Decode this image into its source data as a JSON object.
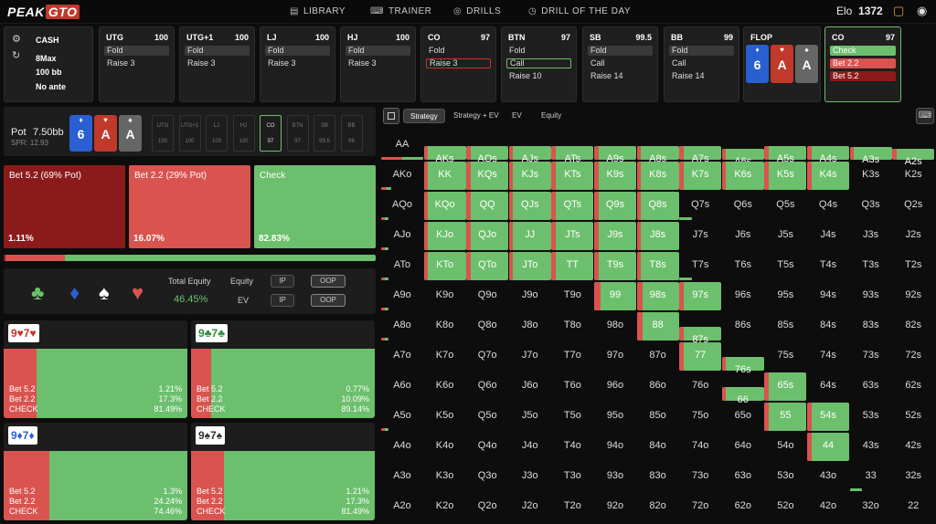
{
  "app": {
    "logo_a": "PEAK",
    "logo_b": "GTO",
    "elo_label": "Elo",
    "elo_value": "1372"
  },
  "nav": [
    {
      "label": "LIBRARY",
      "icon": "book-icon"
    },
    {
      "label": "TRAINER",
      "icon": "gamepad-icon"
    },
    {
      "label": "DRILLS",
      "icon": "target-icon"
    },
    {
      "label": "DRILL OF THE DAY",
      "icon": "clock-icon"
    }
  ],
  "settings": {
    "game": "CASH",
    "table": "8Max",
    "stack": "100 bb",
    "ante": "No ante"
  },
  "positions": [
    {
      "pos": "UTG",
      "stack": "100",
      "actions": [
        "Fold",
        "Raise 3"
      ],
      "sel": 0
    },
    {
      "pos": "UTG+1",
      "stack": "100",
      "actions": [
        "Fold",
        "Raise 3"
      ],
      "sel": 0
    },
    {
      "pos": "LJ",
      "stack": "100",
      "actions": [
        "Fold",
        "Raise 3"
      ],
      "sel": 0
    },
    {
      "pos": "HJ",
      "stack": "100",
      "actions": [
        "Fold",
        "Raise 3"
      ],
      "sel": 0
    },
    {
      "pos": "CO",
      "stack": "97",
      "actions": [
        "Fold",
        "Raise 3"
      ],
      "sel": 1
    },
    {
      "pos": "BTN",
      "stack": "97",
      "actions": [
        "Fold",
        "Call",
        "Raise 10"
      ],
      "sel": 1
    },
    {
      "pos": "SB",
      "stack": "99.5",
      "actions": [
        "Fold",
        "Call",
        "Raise 14"
      ],
      "sel": 0
    },
    {
      "pos": "BB",
      "stack": "99",
      "actions": [
        "Fold",
        "Call",
        "Raise 14"
      ],
      "sel": 0
    }
  ],
  "flop": {
    "label": "FLOP",
    "cards": [
      {
        "rank": "6",
        "suit": "♦",
        "color": "#2a5fd1"
      },
      {
        "rank": "A",
        "suit": "♥",
        "color": "#c0392b"
      },
      {
        "rank": "A",
        "suit": "♠",
        "color": "#666666"
      }
    ]
  },
  "current": {
    "pos": "CO",
    "stack": "97",
    "actions": [
      {
        "label": "Check",
        "color": "#6cbf6c"
      },
      {
        "label": "Bet 2.2",
        "color": "#d9534f"
      },
      {
        "label": "Bet 5.2",
        "color": "#8b1a1a"
      }
    ]
  },
  "pot": {
    "label": "Pot",
    "value": "7.50bb",
    "spr": "SPR: 12.93"
  },
  "mini_positions": [
    {
      "n": "UTG",
      "s": "100"
    },
    {
      "n": "UTG+1",
      "s": "100"
    },
    {
      "n": "LJ",
      "s": "100"
    },
    {
      "n": "HJ",
      "s": "100"
    },
    {
      "n": "CO",
      "s": "97"
    },
    {
      "n": "BTN",
      "s": "97"
    },
    {
      "n": "SB",
      "s": "99.5"
    },
    {
      "n": "BB",
      "s": "99"
    }
  ],
  "strategy": [
    {
      "label": "Bet 5.2 (69% Pot)",
      "pct": "1.11%",
      "color": "#8b1a1a"
    },
    {
      "label": "Bet 2.2 (29% Pot)",
      "pct": "16.07%",
      "color": "#d9534f"
    },
    {
      "label": "Check",
      "pct": "82.83%",
      "color": "#6cbf6c"
    }
  ],
  "equity": {
    "total_label": "Total Equity",
    "total_value": "46.45%",
    "equity_label": "Equity",
    "ev_label": "EV",
    "ip": "IP",
    "oop": "OOP"
  },
  "hands": [
    {
      "title": "9♥7♥",
      "tcolor": "#c0392b",
      "red": 0.18,
      "rows": [
        [
          "Bet 5.2",
          "1.21%"
        ],
        [
          "Bet 2.2",
          "17.3%"
        ],
        [
          "CHECK",
          "81.49%"
        ]
      ]
    },
    {
      "title": "9♣7♣",
      "tcolor": "#2e8b3d",
      "red": 0.11,
      "rows": [
        [
          "Bet 5.2",
          "0.77%"
        ],
        [
          "Bet 2.2",
          "10.09%"
        ],
        [
          "CHECK",
          "89.14%"
        ]
      ]
    },
    {
      "title": "9♦7♦",
      "tcolor": "#2a5fd1",
      "red": 0.25,
      "rows": [
        [
          "Bet 5.2",
          "1.3%"
        ],
        [
          "Bet 2.2",
          "24.24%"
        ],
        [
          "CHECK",
          "74.46%"
        ]
      ]
    },
    {
      "title": "9♠7♠",
      "tcolor": "#333333",
      "red": 0.18,
      "rows": [
        [
          "Bet 5.2",
          "1.21%"
        ],
        [
          "Bet 2.2",
          "17.3%"
        ],
        [
          "CHECK",
          "81.49%"
        ]
      ]
    }
  ],
  "tabs": [
    "Strategy",
    "Strategy + EV",
    "EV",
    "Equity"
  ],
  "matrix": {
    "labels": [
      [
        "AA",
        "AKs",
        "AQs",
        "AJs",
        "ATs",
        "A9s",
        "A8s",
        "A7s",
        "A6s",
        "A5s",
        "A4s",
        "A3s",
        "A2s"
      ],
      [
        "AKo",
        "KK",
        "KQs",
        "KJs",
        "KTs",
        "K9s",
        "K8s",
        "K7s",
        "K6s",
        "K5s",
        "K4s",
        "K3s",
        "K2s"
      ],
      [
        "AQo",
        "KQo",
        "QQ",
        "QJs",
        "QTs",
        "Q9s",
        "Q8s",
        "Q7s",
        "Q6s",
        "Q5s",
        "Q4s",
        "Q3s",
        "Q2s"
      ],
      [
        "AJo",
        "KJo",
        "QJo",
        "JJ",
        "JTs",
        "J9s",
        "J8s",
        "J7s",
        "J6s",
        "J5s",
        "J4s",
        "J3s",
        "J2s"
      ],
      [
        "ATo",
        "KTo",
        "QTo",
        "JTo",
        "TT",
        "T9s",
        "T8s",
        "T7s",
        "T6s",
        "T5s",
        "T4s",
        "T3s",
        "T2s"
      ],
      [
        "A9o",
        "K9o",
        "Q9o",
        "J9o",
        "T9o",
        "99",
        "98s",
        "97s",
        "96s",
        "95s",
        "94s",
        "93s",
        "92s"
      ],
      [
        "A8o",
        "K8o",
        "Q8o",
        "J8o",
        "T8o",
        "98o",
        "88",
        "87s",
        "86s",
        "85s",
        "84s",
        "83s",
        "82s"
      ],
      [
        "A7o",
        "K7o",
        "Q7o",
        "J7o",
        "T7o",
        "97o",
        "87o",
        "77",
        "76s",
        "75s",
        "74s",
        "73s",
        "72s"
      ],
      [
        "A6o",
        "K6o",
        "Q6o",
        "J6o",
        "T6o",
        "96o",
        "86o",
        "76o",
        "66",
        "65s",
        "64s",
        "63s",
        "62s"
      ],
      [
        "A5o",
        "K5o",
        "Q5o",
        "J5o",
        "T5o",
        "95o",
        "85o",
        "75o",
        "65o",
        "55",
        "54s",
        "53s",
        "52s"
      ],
      [
        "A4o",
        "K4o",
        "Q4o",
        "J4o",
        "T4o",
        "94o",
        "84o",
        "74o",
        "64o",
        "54o",
        "44",
        "43s",
        "42s"
      ],
      [
        "A3o",
        "K3o",
        "Q3o",
        "J3o",
        "T3o",
        "93o",
        "83o",
        "73o",
        "63o",
        "53o",
        "43o",
        "33",
        "32s"
      ],
      [
        "A2o",
        "K2o",
        "Q2o",
        "J2o",
        "T2o",
        "92o",
        "82o",
        "72o",
        "62o",
        "52o",
        "42o",
        "32o",
        "22"
      ]
    ],
    "freq": [
      [
        0.03,
        0.5,
        0.5,
        0.5,
        0.5,
        0.5,
        0.5,
        0.5,
        0.4,
        0.5,
        0.5,
        0.45,
        0.4
      ],
      [
        0.04,
        1,
        1,
        1,
        1,
        1,
        1,
        1,
        1,
        1,
        1,
        0,
        0
      ],
      [
        0.03,
        1,
        1,
        1,
        1,
        1,
        1,
        0.05,
        0,
        0,
        0,
        0,
        0
      ],
      [
        0.03,
        1,
        1,
        1,
        1,
        1,
        1,
        0,
        0,
        0,
        0,
        0,
        0
      ],
      [
        0.03,
        1,
        1,
        1,
        1,
        1,
        1,
        0.05,
        0,
        0,
        0,
        0,
        0
      ],
      [
        0.03,
        0,
        0,
        0,
        0,
        1,
        1,
        1,
        0,
        0,
        0,
        0,
        0
      ],
      [
        0.03,
        0,
        0,
        0,
        0,
        0,
        1,
        0.5,
        0,
        0,
        0,
        0,
        0
      ],
      [
        0,
        0,
        0,
        0,
        0,
        0,
        0,
        1,
        0.5,
        0,
        0,
        0,
        0
      ],
      [
        0,
        0,
        0,
        0,
        0,
        0,
        0,
        0,
        0.5,
        1,
        0,
        0,
        0
      ],
      [
        0.03,
        0,
        0,
        0,
        0,
        0,
        0,
        0,
        0,
        1,
        1,
        0,
        0
      ],
      [
        0,
        0,
        0,
        0,
        0,
        0,
        0,
        0,
        0,
        0,
        1,
        0,
        0
      ],
      [
        0,
        0,
        0,
        0,
        0,
        0,
        0,
        0,
        0,
        0,
        0,
        0.05,
        0
      ],
      [
        0,
        0,
        0,
        0,
        0,
        0,
        0,
        0,
        0,
        0,
        0,
        0,
        0
      ]
    ],
    "red": [
      [
        0.5,
        0.1,
        0.1,
        0.1,
        0.1,
        0.1,
        0.1,
        0.1,
        0.1,
        0.1,
        0.1,
        0.1,
        0.1
      ],
      [
        0.5,
        0.1,
        0.1,
        0.1,
        0.1,
        0.1,
        0.1,
        0.1,
        0.1,
        0.1,
        0.1,
        0,
        0
      ],
      [
        0.5,
        0.1,
        0.1,
        0.1,
        0.1,
        0.1,
        0.1,
        0,
        0,
        0,
        0,
        0,
        0
      ],
      [
        0.5,
        0.1,
        0.1,
        0.1,
        0.1,
        0.1,
        0.1,
        0,
        0,
        0,
        0,
        0,
        0
      ],
      [
        0.5,
        0.1,
        0.1,
        0.1,
        0.1,
        0.1,
        0.1,
        0,
        0,
        0,
        0,
        0,
        0
      ],
      [
        0.5,
        0,
        0,
        0,
        0,
        0.15,
        0.15,
        0.1,
        0,
        0,
        0,
        0,
        0
      ],
      [
        0.5,
        0,
        0,
        0,
        0,
        0,
        0.15,
        0.1,
        0,
        0,
        0,
        0,
        0
      ],
      [
        0,
        0,
        0,
        0,
        0,
        0,
        0,
        0.1,
        0.1,
        0,
        0,
        0,
        0
      ],
      [
        0,
        0,
        0,
        0,
        0,
        0,
        0,
        0,
        0.1,
        0.1,
        0,
        0,
        0
      ],
      [
        0.5,
        0,
        0,
        0,
        0,
        0,
        0,
        0,
        0,
        0.1,
        0.1,
        0,
        0
      ],
      [
        0,
        0,
        0,
        0,
        0,
        0,
        0,
        0,
        0,
        0,
        0.1,
        0,
        0
      ],
      [
        0,
        0,
        0,
        0,
        0,
        0,
        0,
        0,
        0,
        0,
        0,
        0,
        0
      ],
      [
        0,
        0,
        0,
        0,
        0,
        0,
        0,
        0,
        0,
        0,
        0,
        0,
        0
      ]
    ]
  },
  "colors": {
    "green": "#6cbf6c",
    "red": "#d9534f",
    "darkred": "#8b1a1a"
  }
}
